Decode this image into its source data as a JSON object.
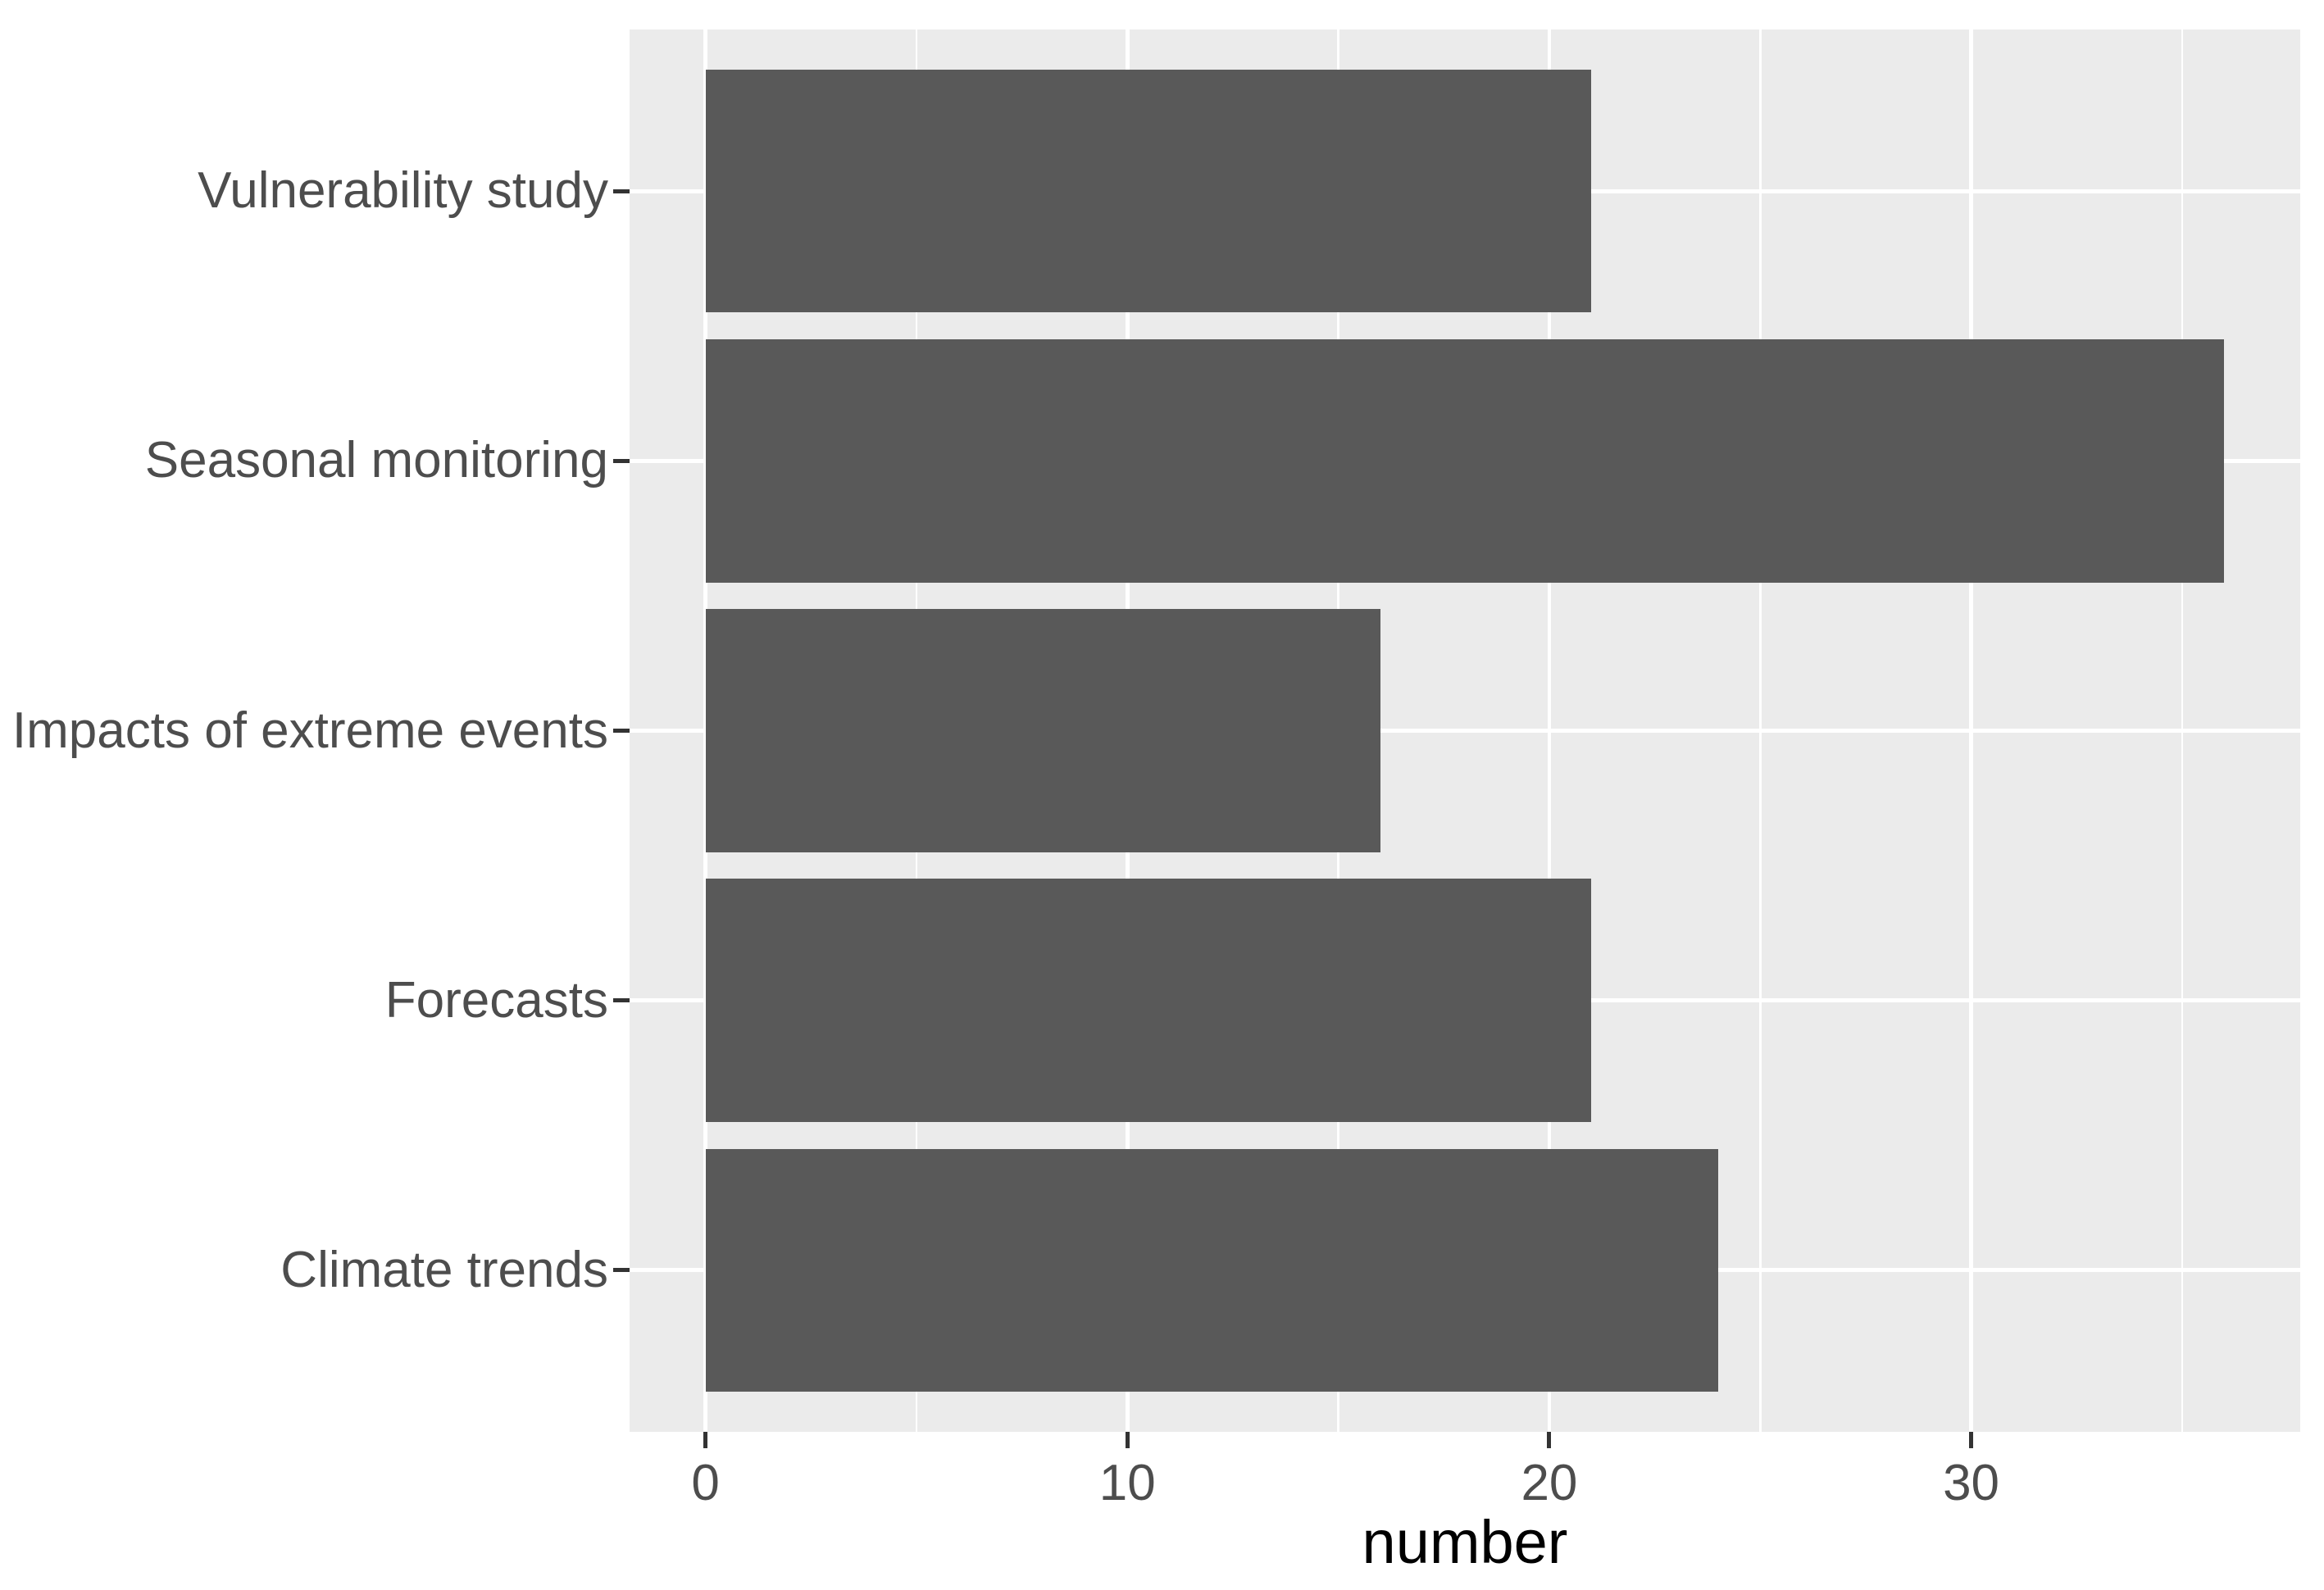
{
  "chart_data": {
    "type": "bar",
    "orientation": "horizontal",
    "title": "",
    "xlabel": "number",
    "ylabel": "",
    "categories": [
      "Vulnerability study",
      "Seasonal monitoring",
      "Impacts of extreme events",
      "Forecasts",
      "Climate trends"
    ],
    "values": [
      21,
      36,
      16,
      21,
      24
    ],
    "xlim": [
      -1.8,
      37.8
    ],
    "x_major_ticks": [
      0,
      10,
      20,
      30
    ],
    "x_tick_labels": [
      "0",
      "10",
      "20",
      "30"
    ],
    "x_minor_gridlines": [
      5,
      15,
      25,
      35
    ],
    "grid": true,
    "legend": false,
    "bar_width_fraction": 0.9,
    "y_band_expand": 0.6,
    "theme": "ggplot-gray",
    "colors": {
      "bar_fill": "#595959",
      "panel_background": "#EBEBEB",
      "gridline_major": "#FFFFFF",
      "gridline_minor": "#FFFFFF",
      "axis_text": "#4D4D4D",
      "axis_title": "#000000",
      "tick_mark": "#333333",
      "figure_background": "#FFFFFF"
    }
  }
}
